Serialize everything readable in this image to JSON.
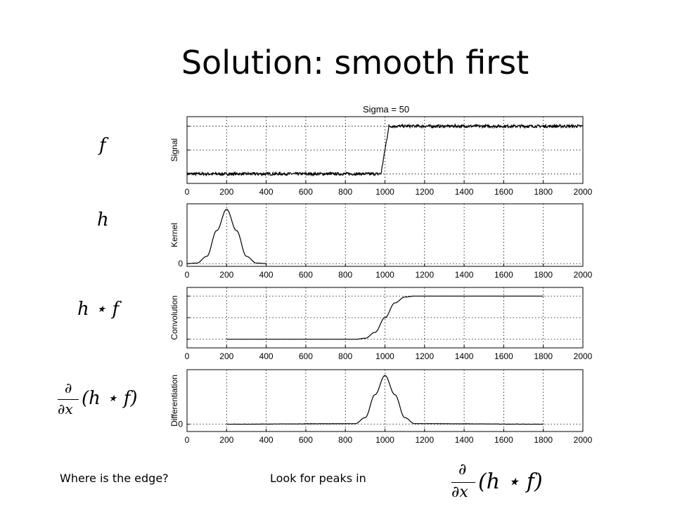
{
  "slide": {
    "title": "Solution:  smooth first",
    "caption_left": "Where is the edge?",
    "caption_mid": "Look for peaks in"
  },
  "math_labels": {
    "f": "f",
    "h": "h",
    "hf": "h ⋆ f",
    "deriv_num": "∂",
    "deriv_den": "∂x",
    "deriv_rest": "(h ⋆ f)"
  },
  "figure": {
    "title": "Sigma = 50"
  },
  "chart_data": [
    {
      "type": "line",
      "title": "Sigma = 50",
      "ylabel": "Signal",
      "xlim": [
        0,
        2000
      ],
      "xticks": [
        0,
        200,
        400,
        600,
        800,
        1000,
        1200,
        1400,
        1600,
        1800,
        2000
      ],
      "ylim": [
        -0.2,
        1.2
      ],
      "yticklabels": [],
      "grid": true,
      "series": [
        {
          "x": [
            0,
            980,
            1000,
            1020,
            2000
          ],
          "values": [
            0.0,
            0.0,
            0.5,
            1.0,
            1.0
          ],
          "noise": "small random noise on flat segments"
        }
      ]
    },
    {
      "type": "line",
      "ylabel": "Kernel",
      "xlim": [
        0,
        2000
      ],
      "xticks": [
        0,
        200,
        400,
        600,
        800,
        1000,
        1200,
        1400,
        1600,
        1800,
        2000
      ],
      "yticks": [
        0
      ],
      "grid": true,
      "series": [
        {
          "x": [
            0,
            50,
            100,
            150,
            200,
            250,
            300,
            350,
            400
          ],
          "values": [
            0.0,
            0.011,
            0.135,
            0.607,
            1.0,
            0.607,
            0.135,
            0.011,
            0.0
          ]
        }
      ]
    },
    {
      "type": "line",
      "ylabel": "Convolution",
      "xlim": [
        0,
        2000
      ],
      "xticks": [
        0,
        200,
        400,
        600,
        800,
        1000,
        1200,
        1400,
        1600,
        1800,
        2000
      ],
      "yticklabels": [],
      "grid": true,
      "series": [
        {
          "x": [
            200,
            850,
            900,
            950,
            1000,
            1050,
            1100,
            1150,
            1800
          ],
          "values": [
            0.0,
            0.0,
            0.023,
            0.159,
            0.5,
            0.841,
            0.977,
            1.0,
            1.0
          ]
        }
      ]
    },
    {
      "type": "line",
      "ylabel": "Differentiation",
      "xlim": [
        0,
        2000
      ],
      "xticks": [
        0,
        200,
        400,
        600,
        800,
        1000,
        1200,
        1400,
        1600,
        1800,
        2000
      ],
      "yticks": [
        0
      ],
      "grid": true,
      "series": [
        {
          "x": [
            200,
            850,
            900,
            950,
            1000,
            1050,
            1100,
            1150,
            1800
          ],
          "values": [
            0.0,
            0.011,
            0.135,
            0.607,
            1.0,
            0.607,
            0.135,
            0.011,
            0.0
          ]
        }
      ]
    }
  ]
}
